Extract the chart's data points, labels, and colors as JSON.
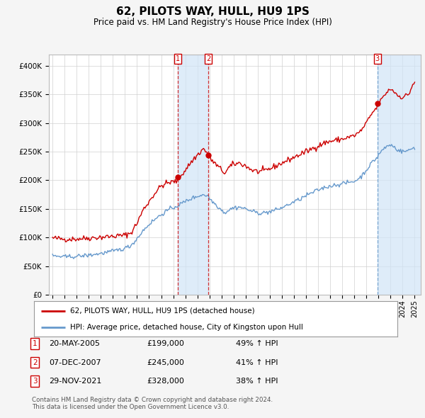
{
  "title": "62, PILOTS WAY, HULL, HU9 1PS",
  "subtitle": "Price paid vs. HM Land Registry's House Price Index (HPI)",
  "legend_line1": "62, PILOTS WAY, HULL, HU9 1PS (detached house)",
  "legend_line2": "HPI: Average price, detached house, City of Kingston upon Hull",
  "footer1": "Contains HM Land Registry data © Crown copyright and database right 2024.",
  "footer2": "This data is licensed under the Open Government Licence v3.0.",
  "transactions": [
    {
      "num": 1,
      "date": "20-MAY-2005",
      "price": "£199,000",
      "hpi": "49% ↑ HPI",
      "year": 2005.38,
      "vline_style": "red_dashed"
    },
    {
      "num": 2,
      "date": "07-DEC-2007",
      "price": "£245,000",
      "hpi": "41% ↑ HPI",
      "year": 2007.92,
      "vline_style": "red_dashed"
    },
    {
      "num": 3,
      "date": "29-NOV-2021",
      "price": "£328,000",
      "hpi": "38% ↑ HPI",
      "year": 2021.91,
      "vline_style": "blue_dashed"
    }
  ],
  "red_line_color": "#cc0000",
  "blue_line_color": "#6699cc",
  "shade_color": "#d0e4f7",
  "ylim": [
    0,
    420000
  ],
  "yticks": [
    0,
    50000,
    100000,
    150000,
    200000,
    250000,
    300000,
    350000,
    400000
  ],
  "ytick_labels": [
    "£0",
    "£50K",
    "£100K",
    "£150K",
    "£200K",
    "£250K",
    "£300K",
    "£350K",
    "£400K"
  ],
  "background_color": "#f5f5f5",
  "plot_bg_color": "#ffffff",
  "xmin": 1994.7,
  "xmax": 2025.5
}
